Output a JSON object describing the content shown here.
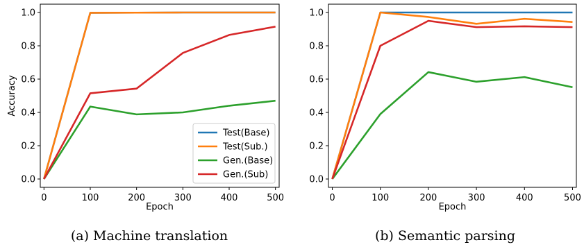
{
  "chart_data": [
    {
      "type": "line",
      "caption": "(a) Machine translation",
      "xlabel": "Epoch",
      "ylabel": "Accuracy",
      "xlim": [
        -8,
        508
      ],
      "ylim": [
        -0.05,
        1.05
      ],
      "xticks": [
        0,
        100,
        200,
        300,
        400,
        500
      ],
      "yticks": [
        0.0,
        0.2,
        0.4,
        0.6,
        0.8,
        1.0
      ],
      "x": [
        0,
        100,
        200,
        300,
        400,
        500
      ],
      "legend": {
        "show": true,
        "placement": "lower-right"
      },
      "series": [
        {
          "name": "Test(Base)",
          "color": "#1f77b4",
          "values": [
            0.0,
            0.998,
            0.999,
            1.0,
            1.0,
            1.0
          ]
        },
        {
          "name": "Test(Sub.)",
          "color": "#ff7f0e",
          "values": [
            0.0,
            0.998,
            0.999,
            1.0,
            1.0,
            1.0
          ]
        },
        {
          "name": "Gen.(Base)",
          "color": "#2ca02c",
          "values": [
            0.0,
            0.435,
            0.388,
            0.4,
            0.44,
            0.47
          ]
        },
        {
          "name": "Gen.(Sub)",
          "color": "#d62728",
          "values": [
            0.0,
            0.515,
            0.543,
            0.757,
            0.865,
            0.915
          ]
        }
      ]
    },
    {
      "type": "line",
      "caption": "(b) Semantic parsing",
      "xlabel": "Epoch",
      "ylabel": "",
      "xlim": [
        -8,
        508
      ],
      "ylim": [
        -0.05,
        1.05
      ],
      "xticks": [
        0,
        100,
        200,
        300,
        400,
        500
      ],
      "yticks": [
        0.0,
        0.2,
        0.4,
        0.6,
        0.8,
        1.0
      ],
      "x": [
        0,
        100,
        200,
        300,
        400,
        500
      ],
      "legend": {
        "show": false,
        "placement": ""
      },
      "series": [
        {
          "name": "Test(Base)",
          "color": "#1f77b4",
          "values": [
            0.0,
            1.0,
            1.0,
            1.0,
            1.0,
            1.0
          ]
        },
        {
          "name": "Test(Sub.)",
          "color": "#ff7f0e",
          "values": [
            0.0,
            1.0,
            0.973,
            0.932,
            0.962,
            0.943
          ]
        },
        {
          "name": "Gen.(Base)",
          "color": "#2ca02c",
          "values": [
            0.0,
            0.39,
            0.642,
            0.584,
            0.612,
            0.551
          ]
        },
        {
          "name": "Gen.(Sub)",
          "color": "#d62728",
          "values": [
            0.0,
            0.8,
            0.95,
            0.912,
            0.917,
            0.912
          ]
        }
      ]
    }
  ]
}
